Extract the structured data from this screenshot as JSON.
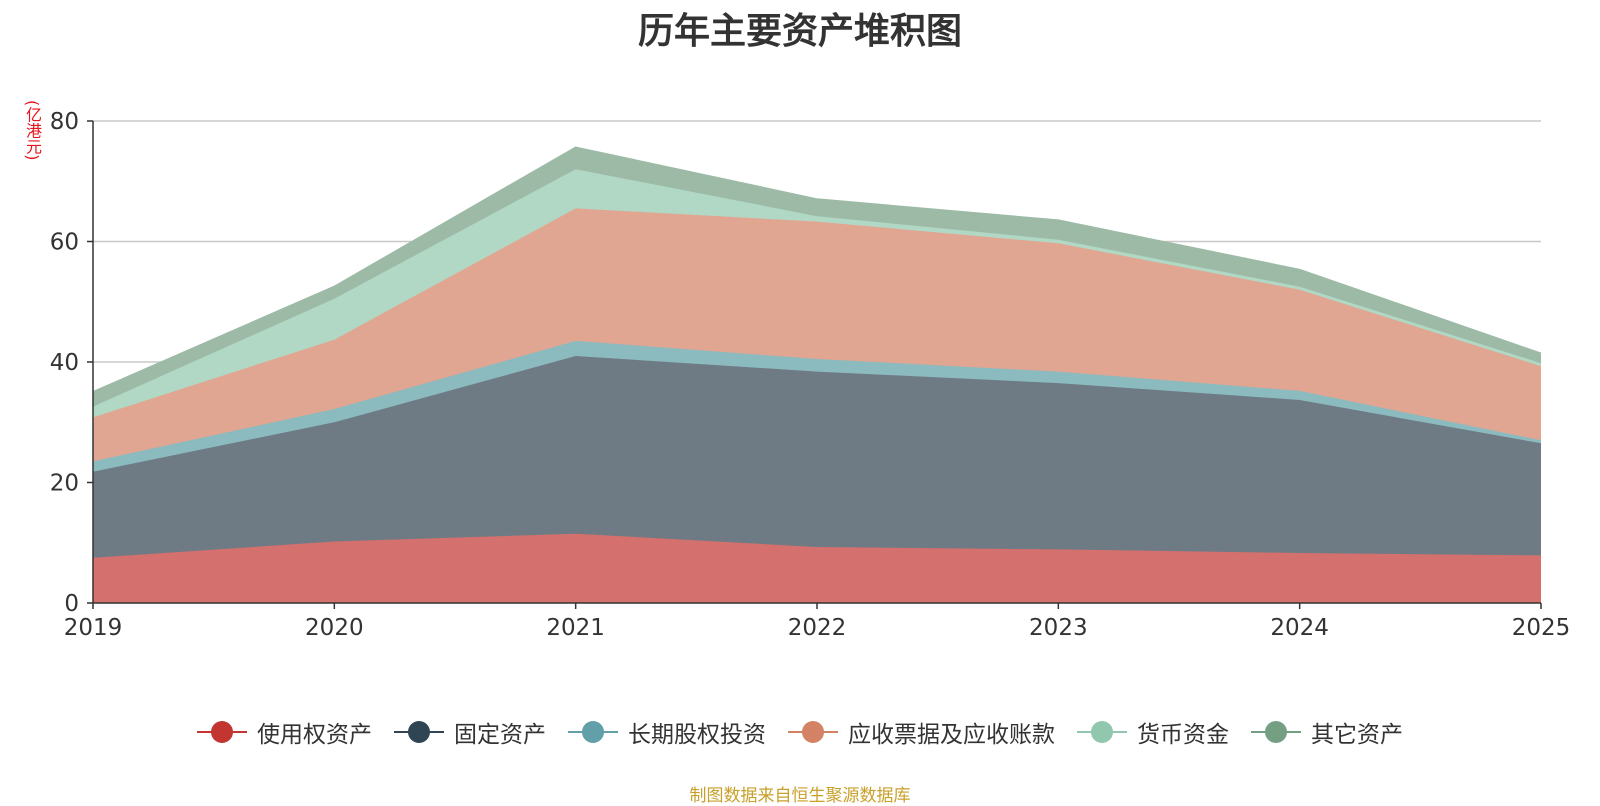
{
  "chart_data": {
    "type": "area",
    "stacked": true,
    "title": "历年主要资产堆积图",
    "ylabel": "(亿港元)",
    "xlabel": "",
    "categories": [
      "2019",
      "2020",
      "2021",
      "2022",
      "2023",
      "2024",
      "2025"
    ],
    "ylim": [
      0,
      80
    ],
    "yticks": [
      0,
      20,
      40,
      60,
      80
    ],
    "grid": true,
    "legend_position": "bottom",
    "series": [
      {
        "name": "使用权资产",
        "color": "#c23531",
        "fill": "#d4706d",
        "values": [
          7.5,
          10.2,
          11.5,
          9.3,
          8.9,
          8.3,
          7.9
        ]
      },
      {
        "name": "固定资产",
        "color": "#2f4554",
        "fill": "#6e7b85",
        "values": [
          14.3,
          19.8,
          29.5,
          29.1,
          27.6,
          25.4,
          18.6
        ]
      },
      {
        "name": "长期股权投资",
        "color": "#61a0a8",
        "fill": "#8bbabf",
        "values": [
          1.7,
          2.2,
          2.5,
          2.1,
          1.9,
          1.5,
          0.5
        ]
      },
      {
        "name": "应收票据及应收账款",
        "color": "#d48265",
        "fill": "#e1a692",
        "values": [
          7.3,
          11.5,
          22.0,
          22.8,
          21.3,
          16.8,
          12.3
        ]
      },
      {
        "name": "货币资金",
        "color": "#91c7ae",
        "fill": "#b0d8c5",
        "values": [
          1.8,
          6.8,
          6.5,
          0.9,
          0.6,
          0.5,
          0.5
        ]
      },
      {
        "name": "其它资产",
        "color": "#749f83",
        "fill": "#9dbaa7",
        "values": [
          2.4,
          2.0,
          3.6,
          2.8,
          3.2,
          2.8,
          1.6
        ]
      }
    ]
  },
  "source_note": "制图数据来自恒生聚源数据库"
}
